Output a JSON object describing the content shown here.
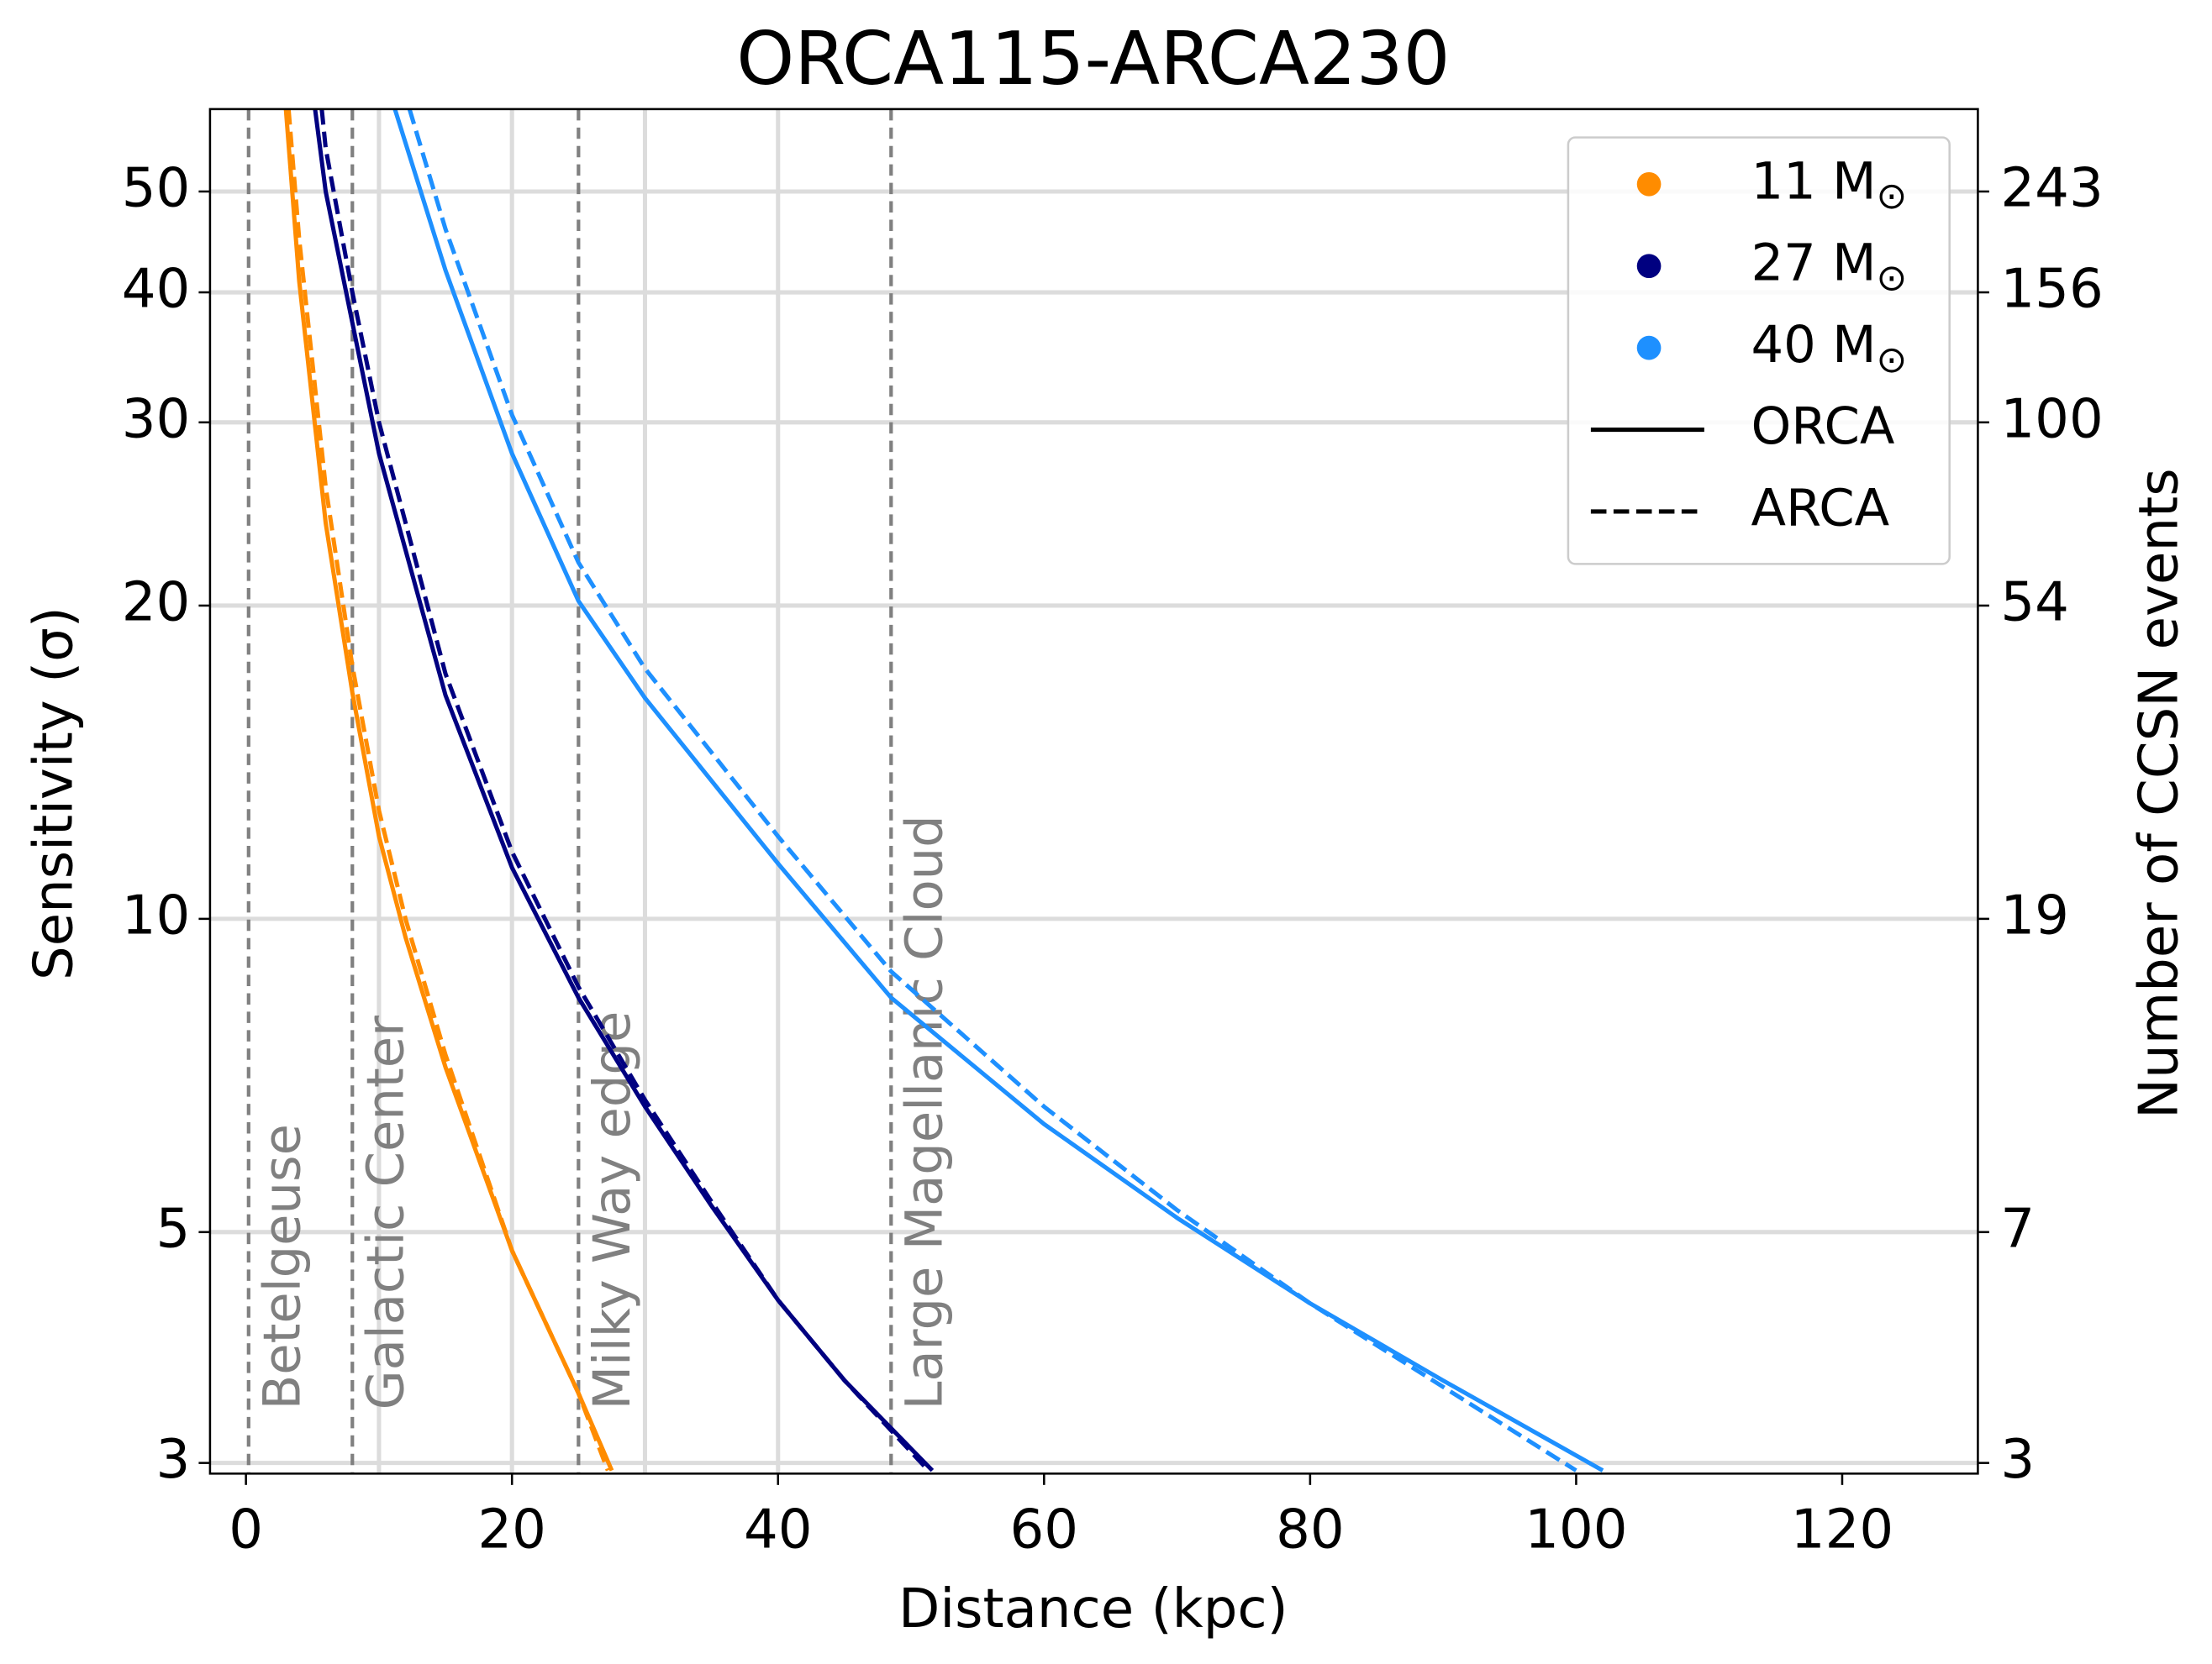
{
  "chart_data": {
    "type": "line",
    "title": "ORCA115-ARCA230",
    "xlabel": "Distance (kpc)",
    "ylabel": "Sensitivity (σ)",
    "y2label": "Number of CCSN events",
    "xlim": [
      -2.7,
      130.2
    ],
    "ylim": [
      2.93,
      60
    ],
    "log_y": true,
    "grid": true,
    "xticks": [
      0,
      20,
      40,
      60,
      80,
      100,
      120
    ],
    "yticks": [
      3,
      5,
      10,
      20,
      30,
      40,
      50
    ],
    "y2ticks": [
      3,
      7,
      19,
      54,
      100,
      156,
      243
    ],
    "gray_vlines": [
      10,
      20,
      30,
      40
    ],
    "annotations": [
      {
        "x": 0.2,
        "text": "Betelgeuse"
      },
      {
        "x": 8,
        "text": "Galactic Center"
      },
      {
        "x": 25,
        "text": "Milky Way edge"
      },
      {
        "x": 48.5,
        "text": "Large Magellanic Cloud"
      }
    ],
    "legend_colors": [
      {
        "label": "11 M",
        "sub": "⊙",
        "color": "#ff8c00"
      },
      {
        "label": "27 M",
        "sub": "⊙",
        "color": "#000080"
      },
      {
        "label": "40 M",
        "sub": "⊙",
        "color": "#1e90ff"
      }
    ],
    "legend_styles": [
      {
        "label": "ORCA",
        "dashed": false
      },
      {
        "label": "ARCA",
        "dashed": true
      }
    ],
    "legend_position": "upper right",
    "series": [
      {
        "color": "#ff8c00",
        "dashed": false,
        "x": [
          3,
          4,
          6,
          8,
          10,
          12,
          15,
          20,
          25,
          27.5
        ],
        "values": [
          60,
          41,
          24,
          16.5,
          12,
          9.6,
          7.2,
          4.8,
          3.5,
          2.95
        ]
      },
      {
        "color": "#ff8c00",
        "dashed": true,
        "x": [
          3.2,
          4,
          6,
          8,
          10,
          12,
          15,
          20,
          25,
          27.2
        ],
        "values": [
          60,
          45,
          26,
          17.5,
          12.7,
          10,
          7.4,
          4.8,
          3.5,
          2.95
        ]
      },
      {
        "color": "#000080",
        "dashed": false,
        "x": [
          5.2,
          6,
          8,
          10,
          15,
          20,
          25,
          30,
          35,
          40,
          45,
          51.6
        ],
        "values": [
          60,
          50,
          37.4,
          28,
          16.4,
          11.2,
          8.4,
          6.6,
          5.3,
          4.3,
          3.6,
          2.95
        ]
      },
      {
        "color": "#000080",
        "dashed": true,
        "x": [
          5.7,
          6,
          8,
          10,
          15,
          20,
          25,
          30,
          35,
          40,
          45,
          51.3
        ],
        "values": [
          60,
          55,
          40,
          30,
          17.2,
          11.6,
          8.6,
          6.7,
          5.35,
          4.3,
          3.6,
          2.95
        ]
      },
      {
        "color": "#1e90ff",
        "dashed": false,
        "x": [
          11.2,
          15,
          20,
          25,
          30,
          40,
          48.5,
          60,
          70,
          80,
          90,
          102
        ],
        "values": [
          60,
          42,
          28,
          20.2,
          16.3,
          11.3,
          8.4,
          6.35,
          5.16,
          4.27,
          3.6,
          2.95
        ]
      },
      {
        "color": "#1e90ff",
        "dashed": true,
        "x": [
          12.3,
          15,
          20,
          25,
          30,
          40,
          48.5,
          60,
          70,
          80,
          90,
          100
        ],
        "values": [
          60,
          46,
          30.5,
          22,
          17.4,
          12,
          8.9,
          6.6,
          5.25,
          4.27,
          3.55,
          2.95
        ]
      }
    ]
  }
}
